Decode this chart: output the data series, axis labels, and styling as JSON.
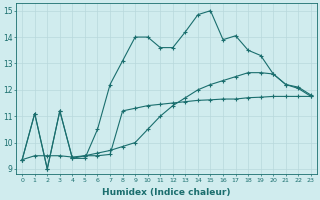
{
  "xlabel": "Humidex (Indice chaleur)",
  "bg_color": "#d0ecee",
  "grid_color": "#b8d8dc",
  "line_color": "#1a6e6e",
  "xlim": [
    -0.5,
    23.5
  ],
  "ylim": [
    8.8,
    15.3
  ],
  "yticks": [
    9,
    10,
    11,
    12,
    13,
    14,
    15
  ],
  "xticks": [
    0,
    1,
    2,
    3,
    4,
    5,
    6,
    7,
    8,
    9,
    10,
    11,
    12,
    13,
    14,
    15,
    16,
    17,
    18,
    19,
    20,
    21,
    22,
    23
  ],
  "series": [
    [
      9.35,
      11.1,
      9.0,
      11.2,
      9.4,
      9.4,
      10.5,
      12.2,
      13.1,
      14.0,
      14.0,
      13.6,
      13.6,
      14.2,
      14.85,
      15.0,
      13.9,
      14.05,
      13.5,
      13.3,
      12.6,
      12.2,
      12.1,
      11.8
    ],
    [
      9.35,
      11.1,
      9.0,
      11.2,
      9.4,
      9.5,
      9.5,
      9.55,
      11.2,
      11.3,
      11.4,
      11.45,
      11.5,
      11.55,
      11.6,
      11.62,
      11.65,
      11.65,
      11.7,
      11.72,
      11.75,
      11.75,
      11.75,
      11.75
    ],
    [
      9.35,
      9.5,
      9.5,
      9.5,
      9.45,
      9.5,
      9.6,
      9.7,
      9.85,
      10.0,
      10.5,
      11.0,
      11.4,
      11.7,
      12.0,
      12.2,
      12.35,
      12.5,
      12.65,
      12.65,
      12.6,
      12.2,
      12.05,
      11.75
    ]
  ]
}
